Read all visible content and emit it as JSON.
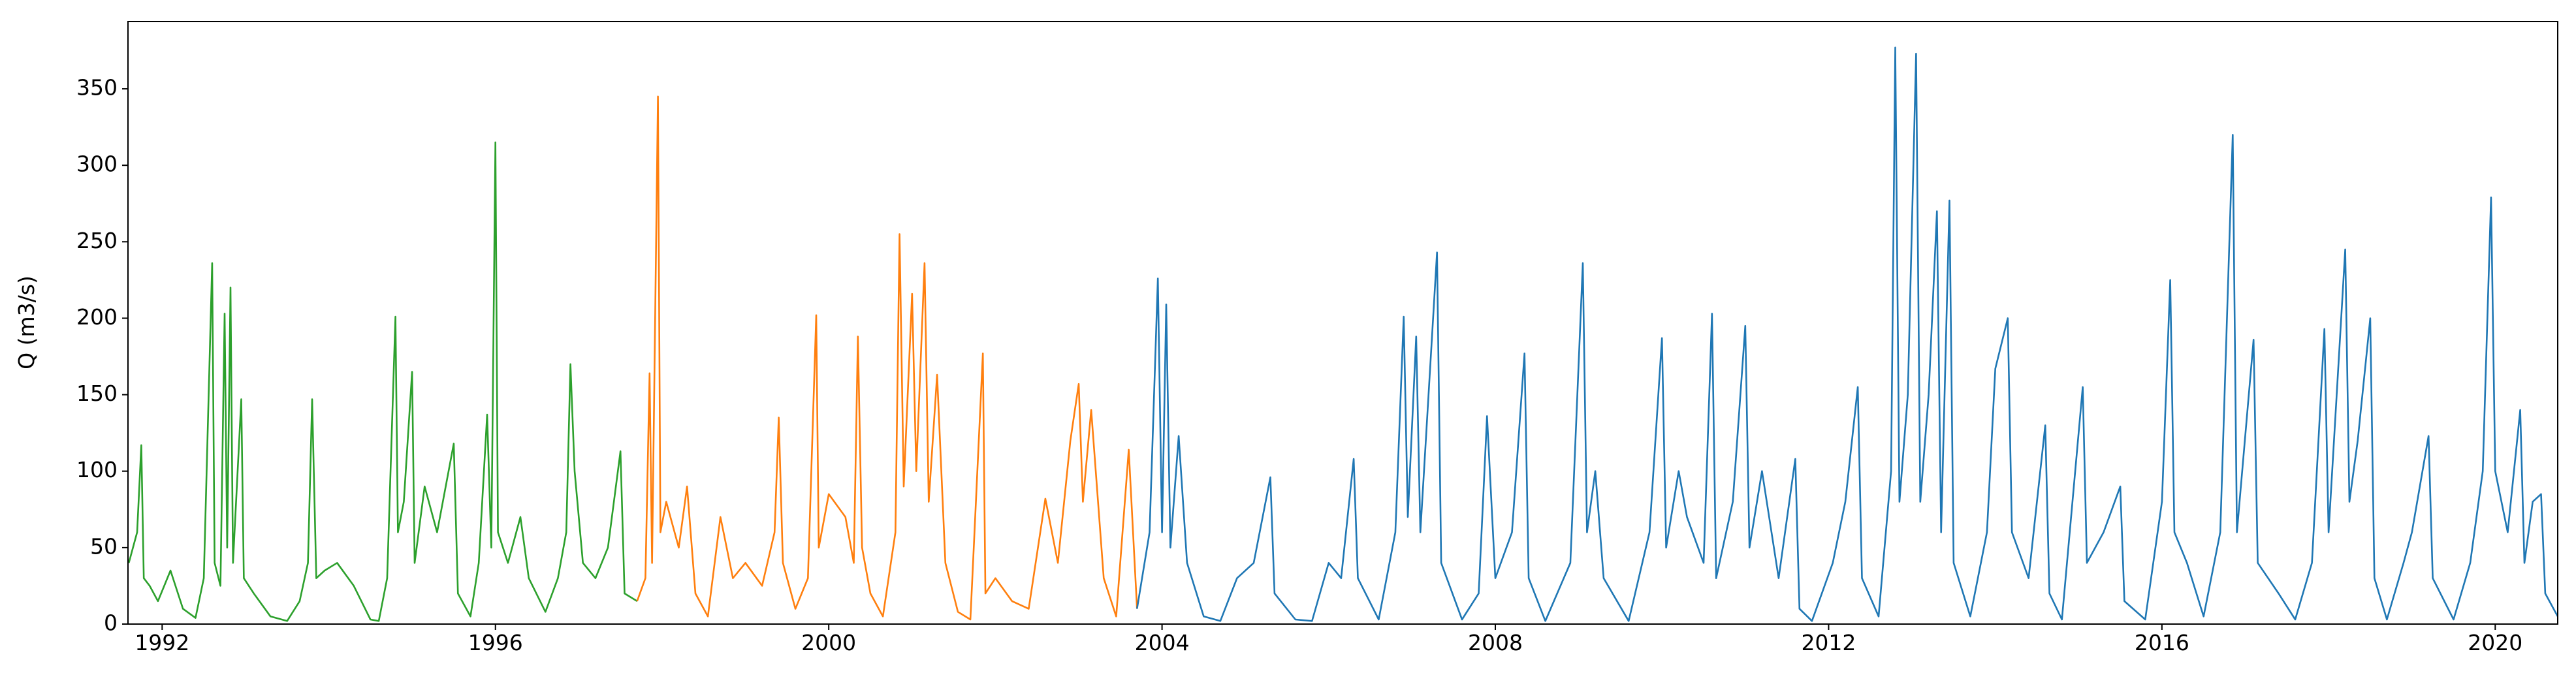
{
  "chart_data": {
    "type": "line",
    "y_label": "Q (m3/s)",
    "xlim": [
      1991.59,
      2020.75
    ],
    "ylim": [
      0,
      394
    ],
    "xticks": [
      1992,
      1996,
      2000,
      2004,
      2008,
      2012,
      2016,
      2020
    ],
    "yticks": [
      0,
      50,
      100,
      150,
      200,
      250,
      300,
      350
    ],
    "series": [
      {
        "color": "#2ca02c",
        "x": [
          1991.6,
          1991.7,
          1991.75,
          1991.78,
          1991.85,
          1991.95,
          1992.1,
          1992.25,
          1992.4,
          1992.5,
          1992.6,
          1992.63,
          1992.7,
          1992.75,
          1992.78,
          1992.82,
          1992.85,
          1992.95,
          1992.98,
          1993.1,
          1993.3,
          1993.5,
          1993.65,
          1993.75,
          1993.8,
          1993.85,
          1993.95,
          1994.1,
          1994.3,
          1994.5,
          1994.6,
          1994.7,
          1994.8,
          1994.83,
          1994.9,
          1995.0,
          1995.03,
          1995.15,
          1995.3,
          1995.5,
          1995.55,
          1995.7,
          1995.8,
          1995.9,
          1995.95,
          1996.0,
          1996.03,
          1996.15,
          1996.3,
          1996.4,
          1996.6,
          1996.75,
          1996.85,
          1996.9,
          1996.95,
          1997.05,
          1997.2,
          1997.35,
          1997.5,
          1997.55,
          1997.7
        ],
        "values": [
          40,
          60,
          117,
          30,
          25,
          15,
          35,
          10,
          4,
          30,
          236,
          40,
          25,
          203,
          50,
          220,
          40,
          147,
          30,
          20,
          5,
          2,
          15,
          40,
          147,
          30,
          35,
          40,
          25,
          3,
          2,
          30,
          201,
          60,
          80,
          165,
          40,
          90,
          60,
          118,
          20,
          5,
          40,
          137,
          50,
          315,
          60,
          40,
          70,
          30,
          8,
          30,
          60,
          170,
          100,
          40,
          30,
          50,
          113,
          20,
          15
        ]
      },
      {
        "color": "#ff7f0e",
        "x": [
          1997.7,
          1997.8,
          1997.85,
          1997.88,
          1997.95,
          1997.98,
          1998.05,
          1998.2,
          1998.3,
          1998.4,
          1998.55,
          1998.7,
          1998.85,
          1999.0,
          1999.2,
          1999.35,
          1999.4,
          1999.45,
          1999.6,
          1999.75,
          1999.85,
          1999.88,
          2000.0,
          2000.2,
          2000.3,
          2000.35,
          2000.4,
          2000.5,
          2000.65,
          2000.8,
          2000.85,
          2000.9,
          2001.0,
          2001.05,
          2001.15,
          2001.2,
          2001.3,
          2001.4,
          2001.55,
          2001.7,
          2001.85,
          2001.88,
          2002.0,
          2002.2,
          2002.4,
          2002.6,
          2002.75,
          2002.9,
          2003.0,
          2003.05,
          2003.15,
          2003.3,
          2003.45,
          2003.6,
          2003.7
        ],
        "values": [
          15,
          30,
          164,
          40,
          345,
          60,
          80,
          50,
          90,
          20,
          5,
          70,
          30,
          40,
          25,
          60,
          135,
          40,
          10,
          30,
          202,
          50,
          85,
          70,
          40,
          188,
          50,
          20,
          5,
          60,
          255,
          90,
          216,
          100,
          236,
          80,
          163,
          40,
          8,
          3,
          177,
          20,
          30,
          15,
          10,
          82,
          40,
          120,
          157,
          80,
          140,
          30,
          5,
          114,
          10
        ]
      },
      {
        "color": "#1f77b4",
        "x": [
          2003.7,
          2003.85,
          2003.95,
          2004.0,
          2004.05,
          2004.1,
          2004.2,
          2004.3,
          2004.5,
          2004.7,
          2004.9,
          2005.1,
          2005.3,
          2005.35,
          2005.6,
          2005.8,
          2006.0,
          2006.15,
          2006.3,
          2006.35,
          2006.6,
          2006.8,
          2006.9,
          2006.95,
          2007.05,
          2007.1,
          2007.3,
          2007.35,
          2007.6,
          2007.8,
          2007.9,
          2008.0,
          2008.2,
          2008.35,
          2008.4,
          2008.6,
          2008.9,
          2009.05,
          2009.1,
          2009.2,
          2009.3,
          2009.6,
          2009.85,
          2010.0,
          2010.05,
          2010.2,
          2010.3,
          2010.5,
          2010.6,
          2010.65,
          2010.85,
          2011.0,
          2011.05,
          2011.2,
          2011.4,
          2011.6,
          2011.65,
          2011.8,
          2012.05,
          2012.2,
          2012.35,
          2012.4,
          2012.6,
          2012.75,
          2012.8,
          2012.85,
          2012.95,
          2013.05,
          2013.1,
          2013.2,
          2013.3,
          2013.35,
          2013.45,
          2013.5,
          2013.7,
          2013.9,
          2014.0,
          2014.15,
          2014.2,
          2014.4,
          2014.6,
          2014.65,
          2014.8,
          2015.05,
          2015.1,
          2015.3,
          2015.5,
          2015.55,
          2015.8,
          2016.0,
          2016.1,
          2016.15,
          2016.3,
          2016.5,
          2016.7,
          2016.85,
          2016.9,
          2017.1,
          2017.15,
          2017.4,
          2017.6,
          2017.8,
          2017.95,
          2018.0,
          2018.2,
          2018.25,
          2018.35,
          2018.5,
          2018.55,
          2018.7,
          2018.9,
          2019.0,
          2019.2,
          2019.25,
          2019.5,
          2019.7,
          2019.85,
          2019.95,
          2020.0,
          2020.15,
          2020.3,
          2020.35,
          2020.45,
          2020.55,
          2020.6,
          2020.75
        ],
        "values": [
          10,
          60,
          226,
          60,
          209,
          50,
          123,
          40,
          5,
          2,
          30,
          40,
          96,
          20,
          3,
          2,
          40,
          30,
          108,
          30,
          3,
          60,
          201,
          70,
          188,
          60,
          243,
          40,
          3,
          20,
          136,
          30,
          60,
          177,
          30,
          2,
          40,
          236,
          60,
          100,
          30,
          2,
          60,
          187,
          50,
          100,
          70,
          40,
          203,
          30,
          80,
          195,
          50,
          100,
          30,
          108,
          10,
          2,
          40,
          80,
          155,
          30,
          5,
          100,
          377,
          80,
          150,
          373,
          80,
          150,
          270,
          60,
          277,
          40,
          5,
          60,
          167,
          200,
          60,
          30,
          130,
          20,
          3,
          155,
          40,
          60,
          90,
          15,
          3,
          80,
          225,
          60,
          40,
          5,
          60,
          320,
          60,
          186,
          40,
          20,
          3,
          40,
          193,
          60,
          245,
          80,
          120,
          200,
          30,
          3,
          40,
          60,
          123,
          30,
          3,
          40,
          100,
          279,
          100,
          60,
          140,
          40,
          80,
          85,
          20,
          5
        ]
      }
    ]
  }
}
